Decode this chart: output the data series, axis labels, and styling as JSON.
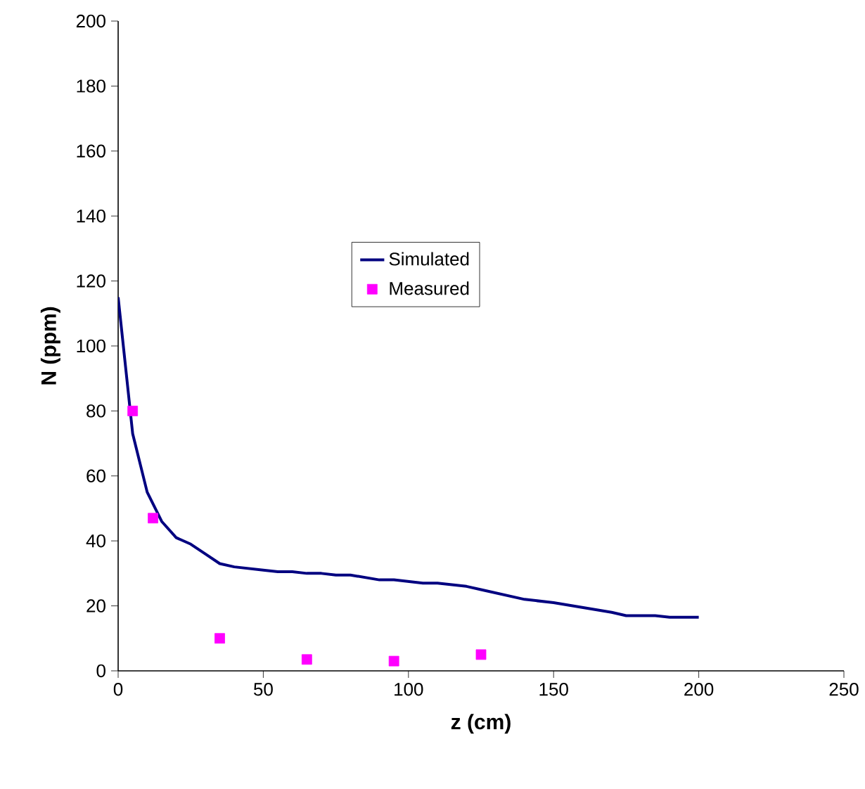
{
  "chart_data": {
    "type": "line",
    "xlabel": "z (cm)",
    "ylabel": "N (ppm)",
    "xlim": [
      0,
      250
    ],
    "xticks": [
      0,
      50,
      100,
      150,
      200,
      250
    ],
    "ylim": [
      0,
      200
    ],
    "yticks": [
      0,
      20,
      40,
      60,
      80,
      100,
      120,
      140,
      160,
      180,
      200
    ],
    "grid": false,
    "legend": "center",
    "series": [
      {
        "name": "Simulated",
        "color": "#000080",
        "marker": "none",
        "x": [
          0,
          5,
          10,
          15,
          20,
          25,
          30,
          35,
          40,
          50,
          55,
          60,
          65,
          70,
          75,
          80,
          90,
          95,
          100,
          105,
          110,
          120,
          125,
          130,
          135,
          140,
          150,
          160,
          170,
          175,
          180,
          185,
          190,
          200
        ],
        "values": [
          115,
          73,
          55,
          46,
          41,
          39,
          36,
          33,
          32,
          31,
          30.5,
          30.5,
          30,
          30,
          29.5,
          29.5,
          28,
          28,
          27.5,
          27,
          27,
          26,
          25,
          24,
          23,
          22,
          21,
          19.5,
          18,
          17,
          17,
          17,
          16.5,
          16.5
        ]
      },
      {
        "name": "Measured",
        "type": "scatter",
        "color": "#ff00ff",
        "marker": "square",
        "x": [
          5,
          12,
          35,
          65,
          95,
          125
        ],
        "values": [
          80,
          47,
          10,
          3.5,
          3,
          5
        ]
      }
    ]
  }
}
